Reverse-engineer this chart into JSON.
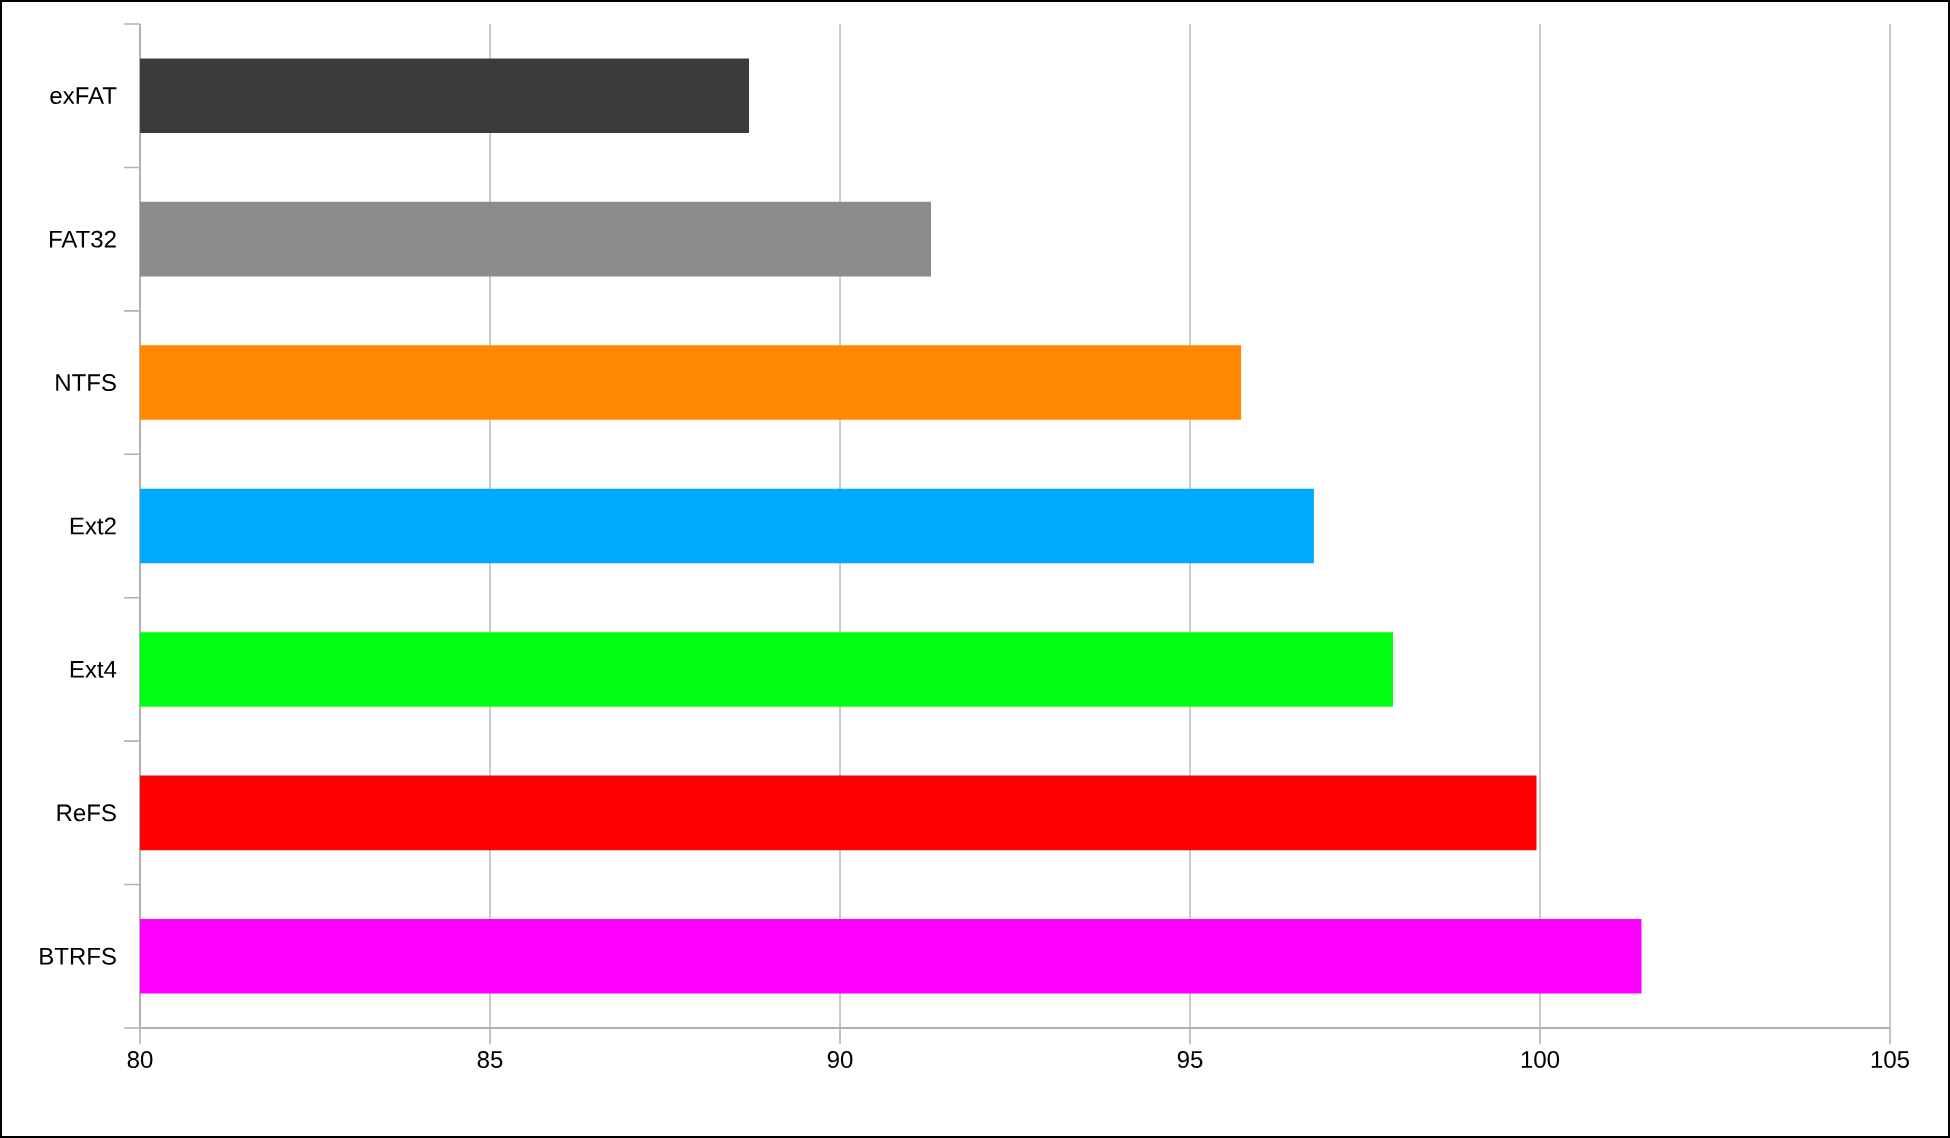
{
  "chart_data": {
    "type": "bar",
    "orientation": "horizontal",
    "categories": [
      "exFAT",
      "FAT32",
      "NTFS",
      "Ext2",
      "Ext4",
      "ReFS",
      "BTRFS"
    ],
    "values": [
      88.7,
      91.3,
      95.73,
      96.77,
      97.9,
      99.95,
      101.45
    ],
    "colors": [
      "#3b3b3b",
      "#8c8c8c",
      "#ff8800",
      "#00aaff",
      "#00ff11",
      "#ff0000",
      "#ff00ff"
    ],
    "xlim": [
      80,
      105
    ],
    "xticks": [
      80,
      85,
      90,
      95,
      100,
      105
    ],
    "grid": "x"
  }
}
